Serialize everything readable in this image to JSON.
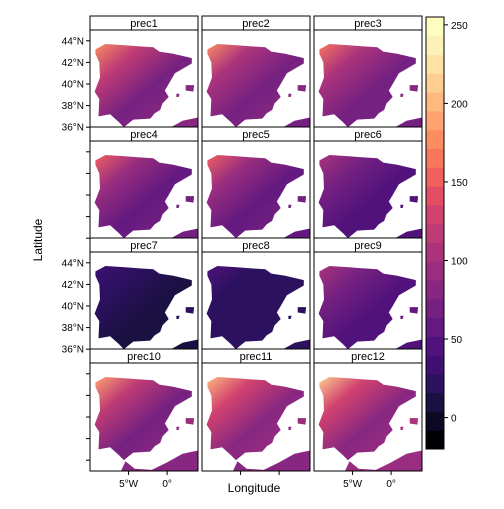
{
  "chart_data": {
    "type": "heatmap",
    "title": "",
    "xlabel": "Longitude",
    "ylabel": "Latitude",
    "panels": [
      {
        "label": "prec1",
        "level": 95
      },
      {
        "label": "prec2",
        "level": 92
      },
      {
        "label": "prec3",
        "level": 88
      },
      {
        "label": "prec4",
        "level": 82
      },
      {
        "label": "prec5",
        "level": 78
      },
      {
        "label": "prec6",
        "level": 55
      },
      {
        "label": "prec7",
        "level": 18
      },
      {
        "label": "prec8",
        "level": 22
      },
      {
        "label": "prec9",
        "level": 58
      },
      {
        "label": "prec10",
        "level": 100
      },
      {
        "label": "prec11",
        "level": 108
      },
      {
        "label": "prec12",
        "level": 112
      }
    ],
    "y_ticks": [
      "44°N",
      "42°N",
      "40°N",
      "38°N",
      "36°N"
    ],
    "y_tick_values": [
      44,
      42,
      40,
      38,
      36
    ],
    "x_ticks": [
      "5°W",
      "0°"
    ],
    "x_tick_values": [
      -5,
      0
    ],
    "xlim": [
      -10,
      4
    ],
    "ylim": [
      35,
      45
    ],
    "colorbar": {
      "ticks": [
        "250",
        "200",
        "150",
        "100",
        "50",
        "0"
      ],
      "tick_values": [
        250,
        200,
        150,
        100,
        50,
        0
      ],
      "range": [
        -20,
        255
      ],
      "colors": [
        "#000004",
        "#0b0924",
        "#1a1042",
        "#2c115f",
        "#3f0f72",
        "#51127c",
        "#63197f",
        "#752181",
        "#872781",
        "#992d80",
        "#ab337c",
        "#be3b75",
        "#d1426f",
        "#e34e65",
        "#f1605d",
        "#f8765c",
        "#fb8d61",
        "#fea36f",
        "#feb97f",
        "#fece91",
        "#fde2a3",
        "#fcf1b8",
        "#fcfdbf"
      ]
    }
  }
}
